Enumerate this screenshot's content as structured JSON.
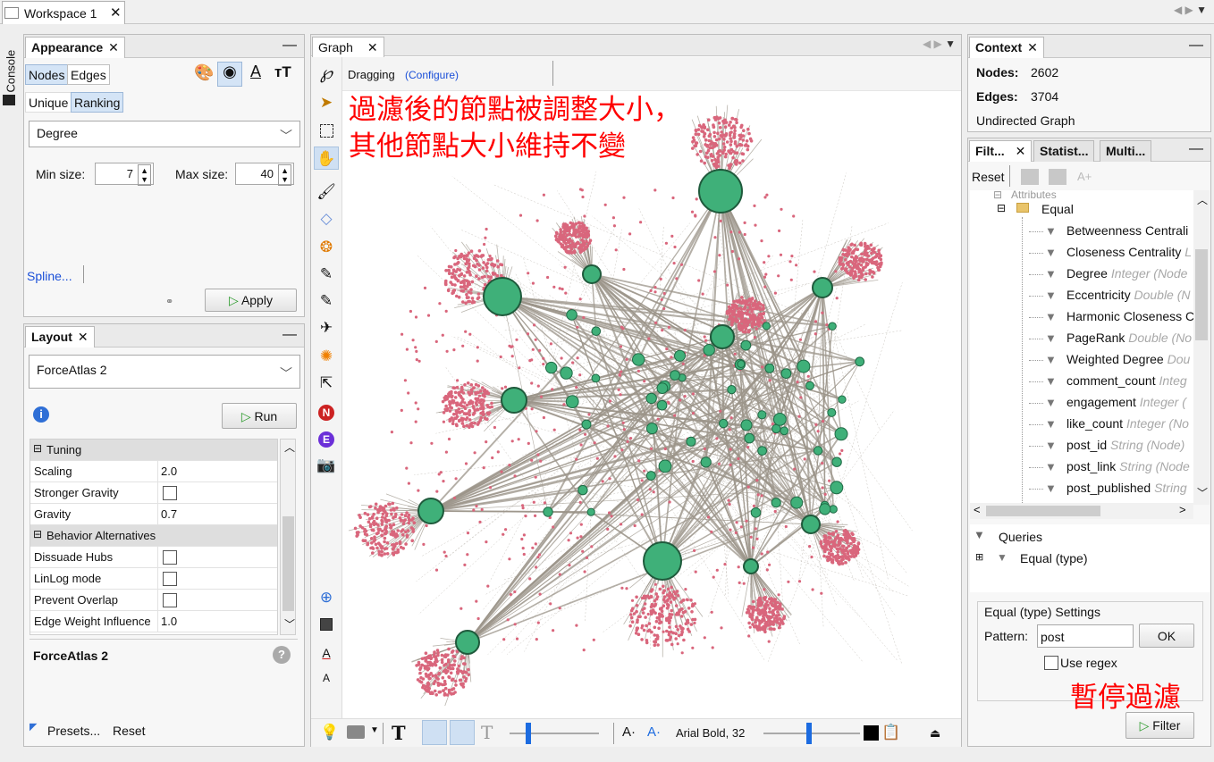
{
  "workspace_tab": "Workspace 1",
  "console_label": "Console",
  "appearance": {
    "title": "Appearance",
    "tabs": [
      "Nodes",
      "Edges"
    ],
    "modes": [
      "Unique",
      "Ranking"
    ],
    "attribute": "Degree",
    "min_label": "Min size:",
    "min_value": "7",
    "max_label": "Max size:",
    "max_value": "40",
    "spline": "Spline...",
    "apply": "Apply"
  },
  "layout": {
    "title": "Layout",
    "algorithm": "ForceAtlas 2",
    "run": "Run",
    "rows": [
      {
        "k": "Tuning",
        "cat": true
      },
      {
        "k": "Scaling",
        "v": "2.0"
      },
      {
        "k": "Stronger Gravity",
        "check": true
      },
      {
        "k": "Gravity",
        "v": "0.7"
      },
      {
        "k": "Behavior Alternatives",
        "cat": true
      },
      {
        "k": "Dissuade Hubs",
        "check": true
      },
      {
        "k": "LinLog mode",
        "check": true
      },
      {
        "k": "Prevent Overlap",
        "check": true
      },
      {
        "k": "Edge Weight Influence",
        "v": "1.0"
      }
    ],
    "footer_title": "ForceAtlas 2",
    "presets": "Presets...",
    "reset": "Reset"
  },
  "graph": {
    "title": "Graph",
    "mode": "Dragging",
    "configure": "(Configure)",
    "annotation_line1": "過濾後的節點被調整大小，",
    "annotation_line2": "其他節點大小維持不變",
    "font_label": "Arial Bold, 32",
    "colors": {
      "small_node": "#d9667c",
      "big_node": "#3fb079",
      "edge": "#9c958a",
      "annotation": "#ff0000"
    }
  },
  "context": {
    "title": "Context",
    "nodes_label": "Nodes:",
    "nodes_value": "2602",
    "edges_label": "Edges:",
    "edges_value": "3704",
    "graph_type": "Undirected Graph"
  },
  "filters": {
    "tabs": [
      "Filt...",
      "Statist...",
      "Multi..."
    ],
    "reset": "Reset",
    "folder": "Equal",
    "items": [
      {
        "name": "Betweenness Centrali",
        "type": ""
      },
      {
        "name": "Closeness Centrality",
        "type": "L"
      },
      {
        "name": "Degree",
        "type": "Integer (Node"
      },
      {
        "name": "Eccentricity",
        "type": "Double (N"
      },
      {
        "name": "Harmonic Closeness C",
        "type": ""
      },
      {
        "name": "PageRank",
        "type": "Double (No"
      },
      {
        "name": "Weighted Degree",
        "type": "Dou"
      },
      {
        "name": "comment_count",
        "type": "Integ"
      },
      {
        "name": "engagement",
        "type": "Integer ("
      },
      {
        "name": "like_count",
        "type": "Integer (No"
      },
      {
        "name": "post_id",
        "type": "String (Node)"
      },
      {
        "name": "post_link",
        "type": "String (Node"
      },
      {
        "name": "post_published",
        "type": "String"
      }
    ],
    "queries_label": "Queries",
    "query_item": "Equal (type)",
    "settings_title": "Equal (type) Settings",
    "pattern_label": "Pattern:",
    "pattern_value": "post",
    "ok": "OK",
    "use_regex": "Use regex",
    "annotation": "暫停過濾",
    "filter_btn": "Filter"
  }
}
